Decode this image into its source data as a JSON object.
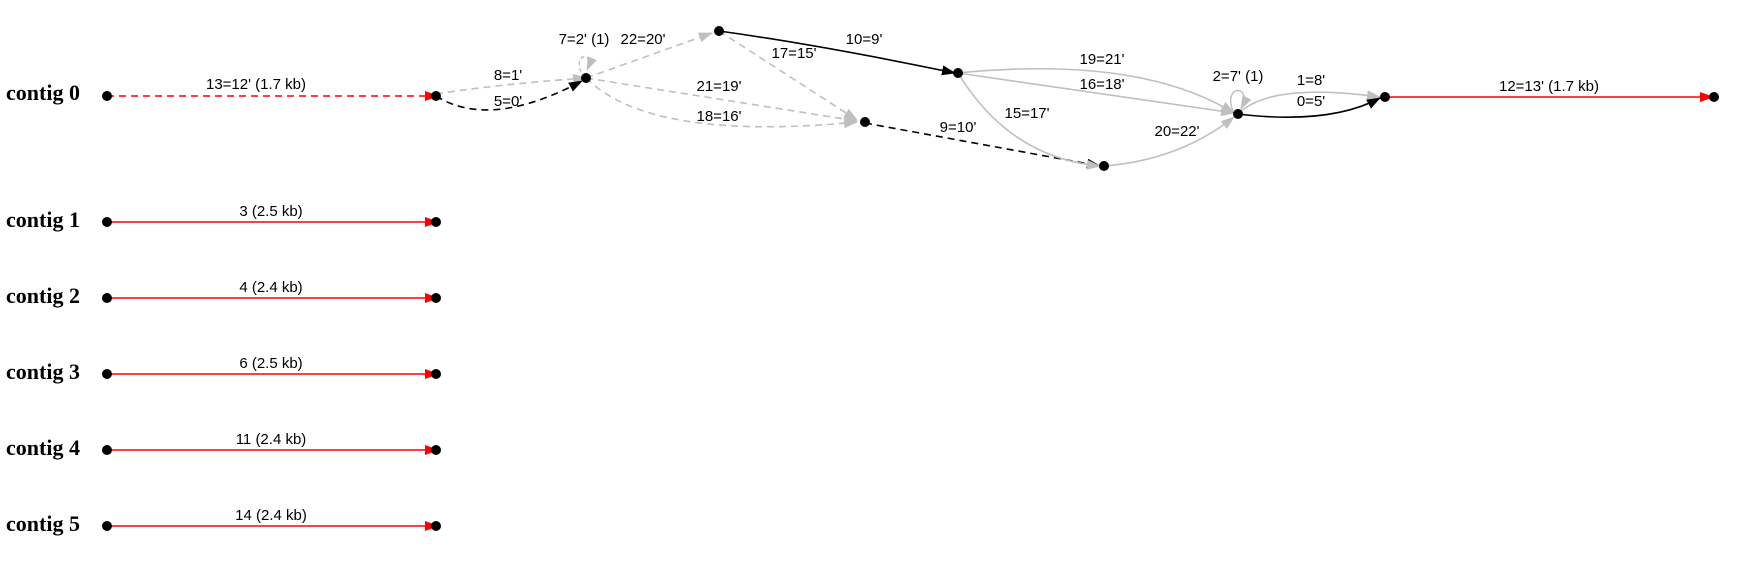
{
  "colors": {
    "red": "#ff0000",
    "black": "#000000",
    "gray": "#bfbfbf",
    "node": "#000000"
  },
  "contigs": {
    "c0": "contig 0",
    "c1": "contig 1",
    "c2": "contig 2",
    "c3": "contig 3",
    "c4": "contig 4",
    "c5": "contig 5"
  },
  "edges": {
    "e13_12": "13=12' (1.7 kb)",
    "e8_1": "8=1'",
    "e5_0": "5=0'",
    "e7_2": "7=2' (1)",
    "e22_20": "22=20'",
    "e17_15": "17=15'",
    "e21_19": "21=19'",
    "e18_16": "18=16'",
    "e10_9": "10=9'",
    "e9_10": "9=10'",
    "e19_21": "19=21'",
    "e16_18": "16=18'",
    "e15_17": "15=17'",
    "e20_22": "20=22'",
    "e2_7": "2=7' (1)",
    "e1_8": "1=8'",
    "e0_5": "0=5'",
    "e12_13": "12=13' (1.7 kb)",
    "e3": "3 (2.5 kb)",
    "e4": "4 (2.4 kb)",
    "e6": "6 (2.5 kb)",
    "e11": "11 (2.4 kb)",
    "e14": "14 (2.4 kb)"
  }
}
